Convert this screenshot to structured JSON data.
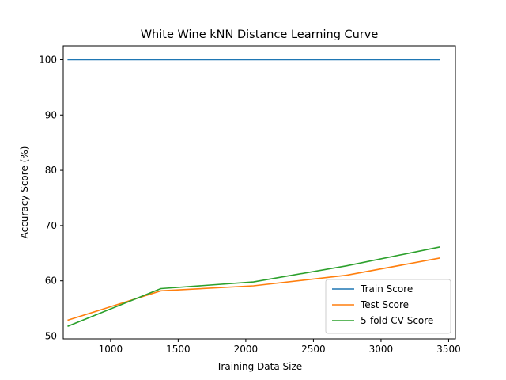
{
  "chart_data": {
    "type": "line",
    "title": "White Wine kNN Distance Learning Curve",
    "xlabel": "Training Data Size",
    "ylabel": "Accuracy Score (%)",
    "xlim": [
      650,
      3550
    ],
    "ylim": [
      49.5,
      102.5
    ],
    "xticks": [
      1000,
      1500,
      2000,
      2500,
      3000,
      3500
    ],
    "yticks": [
      50,
      60,
      70,
      80,
      90,
      100
    ],
    "grid": false,
    "legend_position": "lower-right",
    "x": [
      686,
      1372,
      2057,
      2743,
      3429
    ],
    "series": [
      {
        "name": "Train Score",
        "color": "#1f77b4",
        "values": [
          100,
          100,
          100,
          100,
          100
        ]
      },
      {
        "name": "Test Score",
        "color": "#ff7f0e",
        "values": [
          52.9,
          58.2,
          59.1,
          61.0,
          64.1
        ]
      },
      {
        "name": "5-fold CV Score",
        "color": "#2ca02c",
        "values": [
          51.8,
          58.6,
          59.8,
          62.7,
          66.1
        ]
      }
    ]
  }
}
